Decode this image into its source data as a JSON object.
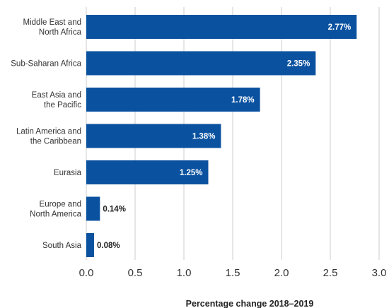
{
  "chart_data": {
    "type": "bar",
    "orientation": "horizontal",
    "categories": [
      [
        "Middle East and",
        "North Africa"
      ],
      [
        "Sub-Saharan Africa"
      ],
      [
        "East Asia and",
        "the Pacific"
      ],
      [
        "Latin America and",
        "the Caribbean"
      ],
      [
        "Eurasia"
      ],
      [
        "Europe and",
        "North America"
      ],
      [
        "South Asia"
      ]
    ],
    "values": [
      2.77,
      2.35,
      1.78,
      1.38,
      1.25,
      0.14,
      0.08
    ],
    "value_labels": [
      "2.77%",
      "2.35%",
      "1.78%",
      "1.38%",
      "1.25%",
      "0.14%",
      "0.08%"
    ],
    "xlim": [
      0,
      3.0
    ],
    "xticks": [
      0,
      0.5,
      1.0,
      1.5,
      2.0,
      2.5,
      3.0
    ],
    "xtick_labels": [
      "0.0",
      "0.5",
      "1.0",
      "1.5",
      "2.0",
      "2.5",
      "3.0"
    ],
    "xlabel": "Percentage change 2018–2019",
    "ylabel": "",
    "title": "",
    "grid": "vertical",
    "legend": "none",
    "colors": {
      "bar": "#0a52a0",
      "grid": "#cccccc"
    }
  }
}
